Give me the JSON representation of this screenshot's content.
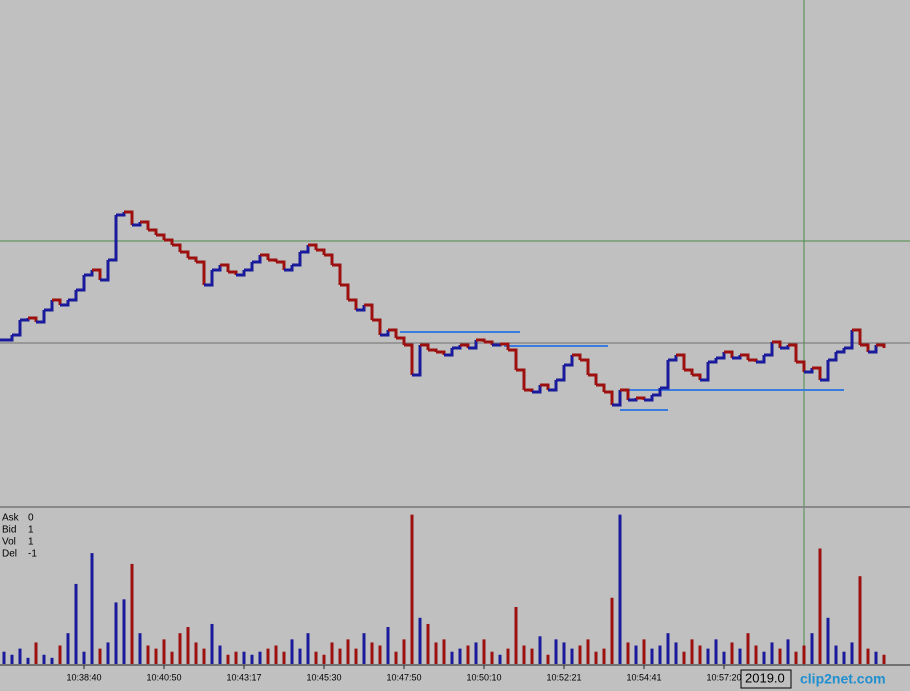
{
  "chart_data": [
    {
      "type": "line",
      "xlim": [
        -0.5,
        110.5
      ],
      "ylim": [
        0,
        101
      ],
      "up_color": "#1a1a9c",
      "down_color": "#9c1010",
      "values": [
        33,
        34,
        37,
        37.4,
        36.6,
        39,
        41,
        40,
        41,
        43,
        46,
        47,
        45,
        49,
        58,
        58.6,
        56,
        56.6,
        55,
        54,
        53,
        52,
        50.6,
        49.4,
        48.6,
        44,
        47,
        48,
        46.6,
        46,
        47,
        48.6,
        50,
        49,
        48.6,
        47,
        48,
        50.6,
        52,
        51,
        50,
        48,
        44,
        41,
        39,
        40,
        37,
        34,
        35,
        33.4,
        32,
        26,
        32,
        31,
        30.6,
        30,
        31.4,
        32,
        31.4,
        33,
        32.6,
        32,
        32.2,
        31,
        27,
        23,
        22.6,
        24,
        23,
        25,
        28,
        30,
        29,
        26,
        24,
        22.6,
        20,
        23,
        21,
        21.4,
        21,
        22,
        23.4,
        29,
        30,
        27,
        26,
        25,
        28.6,
        29.4,
        30.6,
        29.4,
        30,
        29,
        28.6,
        30,
        32.6,
        31.4,
        32,
        28.6,
        26.6,
        27.4,
        25,
        29,
        30.6,
        31.4,
        35,
        32,
        30.6,
        32,
        31.4
      ],
      "levels": [
        {
          "value": 34.6,
          "from": 49.5,
          "to": 64.5
        },
        {
          "value": 31.8,
          "from": 62.5,
          "to": 75.5
        },
        {
          "value": 23,
          "from": 77,
          "to": 105
        },
        {
          "value": 19,
          "from": 77,
          "to": 83
        }
      ],
      "level_color": "#3a7be0"
    },
    {
      "type": "bar",
      "xlim": [
        -0.5,
        110.5
      ],
      "ylim": [
        0,
        100
      ],
      "values": [
        8,
        6,
        10,
        4,
        14,
        6,
        4,
        12,
        20,
        52,
        8,
        72,
        10,
        14,
        40,
        42,
        65,
        20,
        12,
        10,
        16,
        8,
        20,
        24,
        14,
        10,
        26,
        12,
        6,
        8,
        8,
        6,
        8,
        10,
        12,
        8,
        16,
        10,
        20,
        8,
        6,
        14,
        10,
        16,
        10,
        20,
        14,
        12,
        24,
        8,
        16,
        97,
        30,
        26,
        14,
        16,
        8,
        10,
        12,
        14,
        16,
        8,
        6,
        10,
        37,
        12,
        10,
        18,
        6,
        16,
        14,
        10,
        12,
        16,
        8,
        10,
        43,
        97,
        14,
        12,
        16,
        10,
        12,
        20,
        14,
        8,
        16,
        12,
        10,
        16,
        8,
        14,
        10,
        20,
        12,
        8,
        14,
        10,
        16,
        8,
        12,
        20,
        75,
        30,
        12,
        8,
        14,
        57,
        10,
        8,
        6
      ],
      "xticks": [
        {
          "value": 10,
          "label": "10:38:40"
        },
        {
          "value": 20,
          "label": "10:40:50"
        },
        {
          "value": 30,
          "label": "10:43:17"
        },
        {
          "value": 40,
          "label": "10:45:30"
        },
        {
          "value": 50,
          "label": "10:47:50"
        },
        {
          "value": 60,
          "label": "10:50:10"
        },
        {
          "value": 70,
          "label": "10:52:21"
        },
        {
          "value": 80,
          "label": "10:54:41"
        },
        {
          "value": 90,
          "label": "10:57:20"
        }
      ],
      "info": [
        {
          "label": "Ask",
          "value": 0
        },
        {
          "label": "Bid",
          "value": 1
        },
        {
          "label": "Vol",
          "value": 1
        },
        {
          "label": "Del",
          "value": -1
        }
      ]
    }
  ],
  "date_box": "2019.0",
  "watermark": "clip2net.com"
}
